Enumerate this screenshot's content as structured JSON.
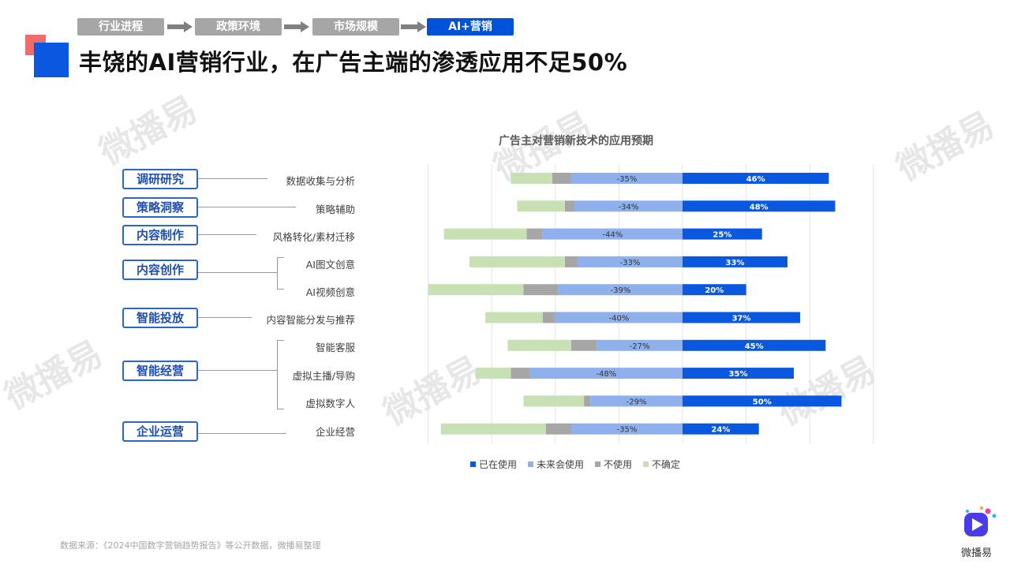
{
  "breadcrumb": {
    "steps": [
      "行业进程",
      "政策环境",
      "市场规模",
      "AI+营销"
    ],
    "active_index": 3
  },
  "page_title": "丰饶的AI营销行业，在广告主端的渗透应用不足50%",
  "left_panel": {
    "categories": [
      {
        "label": "调研研究",
        "items": [
          "数据收集与分析"
        ]
      },
      {
        "label": "策略洞察",
        "items": [
          "策略辅助"
        ]
      },
      {
        "label": "内容制作",
        "items": [
          "风格转化/素材迁移"
        ]
      },
      {
        "label": "内容创作",
        "items": [
          "AI图文创意",
          "AI视频创意"
        ]
      },
      {
        "label": "智能投放",
        "items": [
          "内容智能分发与推荐"
        ]
      },
      {
        "label": "智能经营",
        "items": [
          "智能客服",
          "虚拟主播/导购",
          "虚拟数字人"
        ]
      },
      {
        "label": "企业运营",
        "items": [
          "企业经营"
        ]
      }
    ]
  },
  "chart_data": {
    "type": "bar",
    "orientation": "horizontal-diverging-stacked",
    "title": "广告主对营销新技术的应用预期",
    "categories": [
      "数据收集与分析",
      "策略辅助",
      "风格转化/素材迁移",
      "AI图文创意",
      "AI视频创意",
      "内容智能分发与推荐",
      "智能客服",
      "虚拟主播/导购",
      "虚拟数字人",
      "企业经营"
    ],
    "series": [
      {
        "name": "已在使用",
        "color": "#0a58e0",
        "values": [
          46,
          48,
          25,
          33,
          20,
          37,
          45,
          35,
          50,
          24
        ],
        "labels": [
          "46%",
          "48%",
          "25%",
          "33%",
          "20%",
          "37%",
          "45%",
          "35%",
          "50%",
          "24%"
        ]
      },
      {
        "name": "未来会使用",
        "color": "#8eb1ee",
        "values": [
          -35,
          -34,
          -44,
          -33,
          -39,
          -40,
          -27,
          -48,
          -29,
          -35
        ],
        "labels": [
          "-35%",
          "-34%",
          "-44%",
          "-33%",
          "-39%",
          "-40%",
          "-27%",
          "-48%",
          "-29%",
          "-35%"
        ]
      },
      {
        "name": "不使用",
        "color": "#a6a6a6",
        "values": [
          -6,
          -3,
          -5,
          -4,
          -11,
          -4,
          -8,
          -6,
          -2,
          -8
        ]
      },
      {
        "name": "不确定",
        "color": "#c7e0b4",
        "values": [
          -13,
          -15,
          -26,
          -30,
          -30,
          -18,
          -20,
          -11,
          -19,
          -33
        ]
      }
    ],
    "xlim": [
      -80,
      60
    ],
    "grid": true,
    "legend_position": "bottom"
  },
  "source_note": "数据来源：《2024中国数字营销趋势报告》等公开数据，微播易整理",
  "watermark_text": "微播易",
  "logo_text": "微播易"
}
